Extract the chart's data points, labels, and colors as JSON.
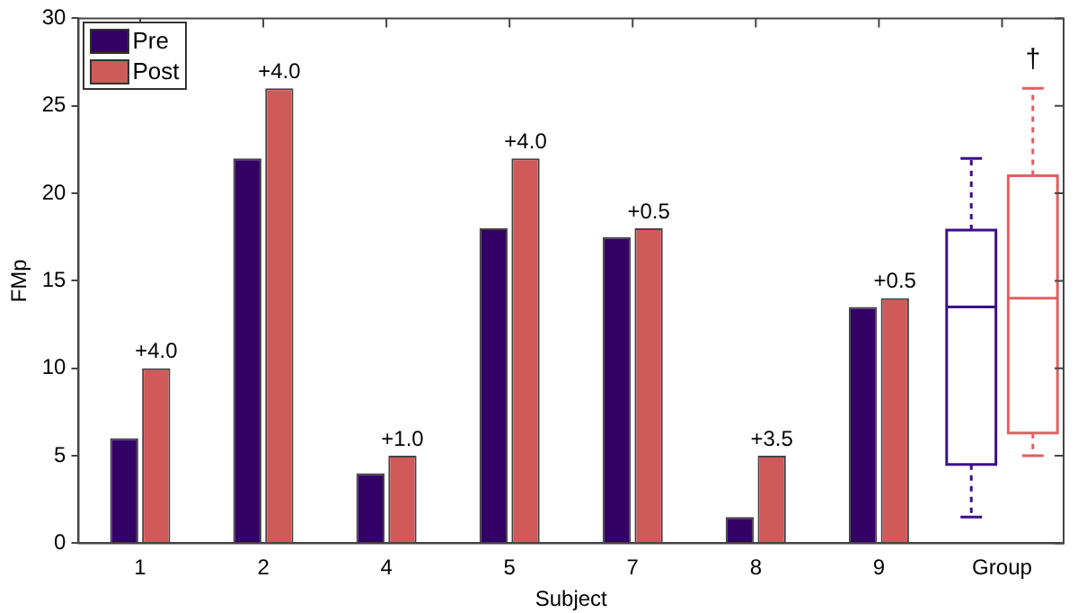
{
  "chart_data": {
    "type": "bar",
    "xlabel": "Subject",
    "ylabel": "FMp",
    "categories": [
      "1",
      "2",
      "4",
      "5",
      "7",
      "8",
      "9",
      "Group"
    ],
    "series": [
      {
        "name": "Pre",
        "color": "#330066",
        "values": [
          6,
          22,
          4,
          18,
          17.5,
          1.5,
          13.5,
          null
        ]
      },
      {
        "name": "Post",
        "color": "#d05a5a",
        "values": [
          10,
          26,
          5,
          22,
          18,
          5,
          14,
          null
        ]
      },
      {
        "type": "box",
        "color": "#3d0f8c",
        "boxes": [
          null,
          null,
          null,
          null,
          null,
          null,
          null,
          {
            "low": 1.5,
            "q1": 4.5,
            "median": 13.5,
            "q3": 17.9,
            "high": 22
          }
        ]
      },
      {
        "type": "box",
        "color": "#e06060",
        "boxes": [
          null,
          null,
          null,
          null,
          null,
          null,
          null,
          {
            "low": 5,
            "q1": 6.3,
            "median": 14,
            "q3": 21,
            "high": 26
          }
        ]
      }
    ],
    "annotations": [
      {
        "text": "+4.0",
        "x": "1",
        "y": 10
      },
      {
        "text": "+4.0",
        "x": "2",
        "y": 26
      },
      {
        "text": "+1.0",
        "x": "4",
        "y": 5
      },
      {
        "text": "+4.0",
        "x": "5",
        "y": 22
      },
      {
        "text": "+0.5",
        "x": "7",
        "y": 18
      },
      {
        "text": "+3.5",
        "x": "8",
        "y": 5
      },
      {
        "text": "+0.5",
        "x": "9",
        "y": 14
      },
      "†"
    ],
    "ylim": [
      0,
      30
    ],
    "yticks": [
      0,
      5,
      10,
      15,
      20,
      25,
      30
    ],
    "grid": false,
    "legend": "top left"
  }
}
